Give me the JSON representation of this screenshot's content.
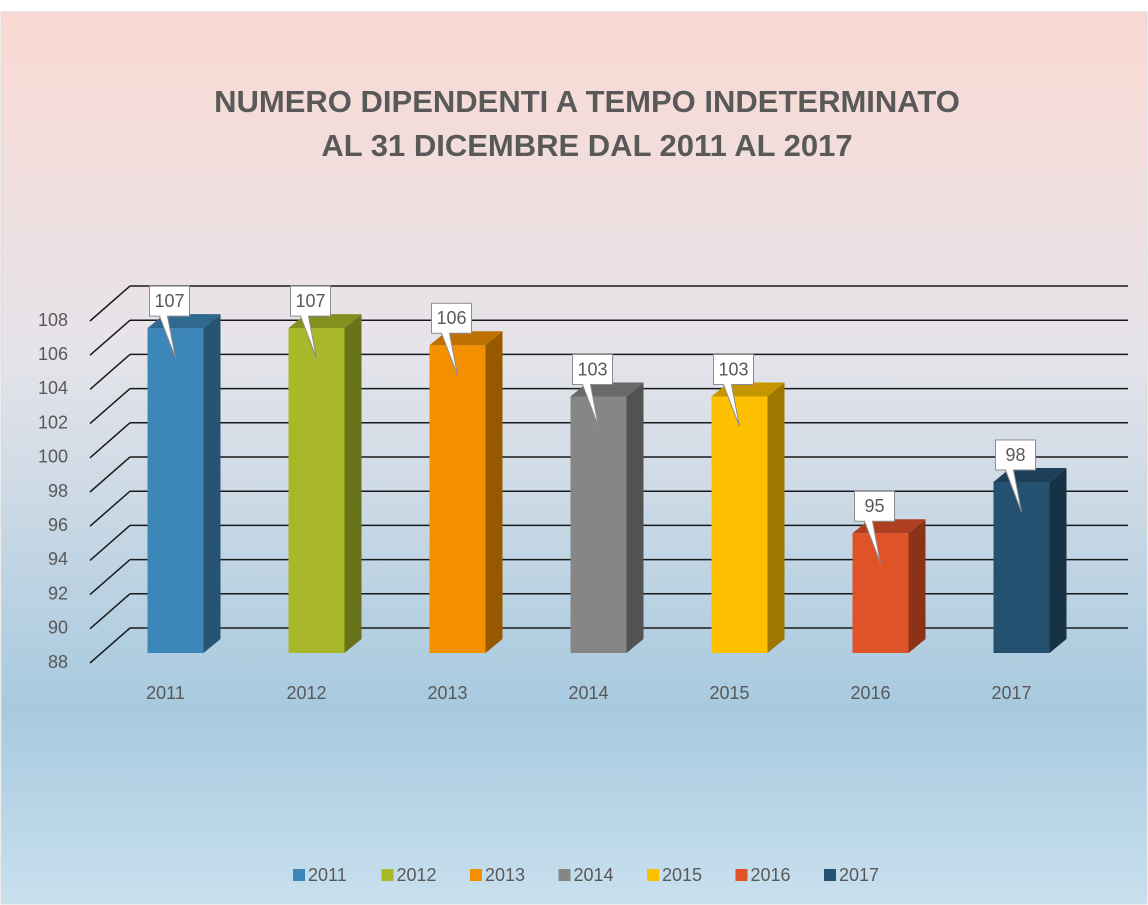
{
  "chart_data": {
    "type": "bar3d",
    "title": [
      "NUMERO DIPENDENTI A TEMPO INDETERMINATO",
      "AL 31 DICEMBRE DAL 2011 AL 2017"
    ],
    "categories": [
      "2011",
      "2012",
      "2013",
      "2014",
      "2015",
      "2016",
      "2017"
    ],
    "values": [
      107,
      107,
      106,
      103,
      103,
      95,
      98
    ],
    "colors": [
      "#3d87b8",
      "#a8b828",
      "#f49000",
      "#868686",
      "#fdc000",
      "#e05228",
      "#255170"
    ],
    "ylim": [
      88,
      108
    ],
    "yticks": [
      88,
      90,
      92,
      94,
      96,
      98,
      100,
      102,
      104,
      106,
      108
    ],
    "grid": true,
    "legend": "bottom"
  }
}
